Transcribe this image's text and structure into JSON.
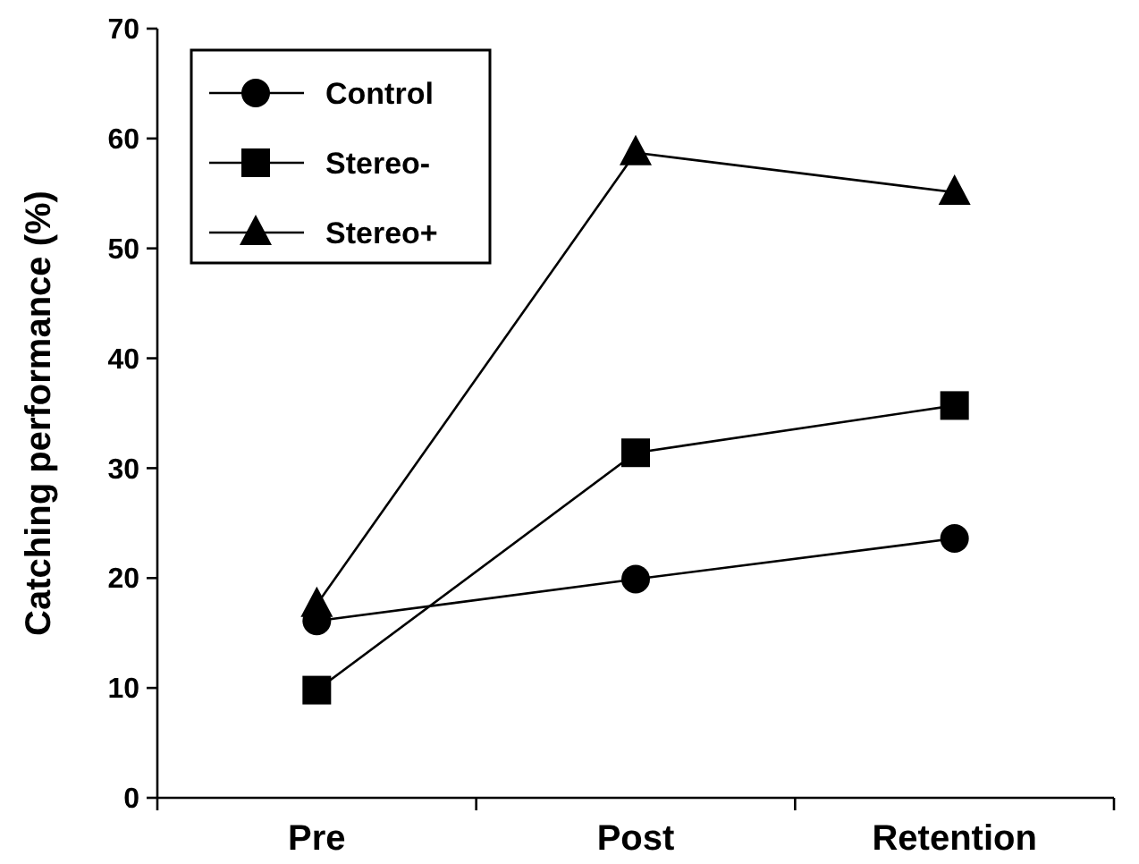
{
  "chart_data": {
    "type": "line",
    "ylabel": "Catching performance (%)",
    "categories": [
      "Pre",
      "Post",
      "Retention"
    ],
    "series": [
      {
        "name": "Control",
        "color": "#000000",
        "marker": "circle",
        "values": [
          16.1,
          19.9,
          23.6
        ]
      },
      {
        "name": "Stereo-",
        "color": "#000000",
        "marker": "square",
        "values": [
          9.8,
          31.4,
          35.7
        ]
      },
      {
        "name": "Stereo+",
        "color": "#000000",
        "marker": "triangle",
        "values": [
          17.6,
          58.7,
          55.1
        ]
      }
    ],
    "ylim": [
      0,
      70
    ],
    "yticks": [
      0,
      10,
      20,
      30,
      40,
      50,
      60,
      70
    ],
    "grid": false,
    "legend": "top left",
    "line_style": "solid"
  }
}
